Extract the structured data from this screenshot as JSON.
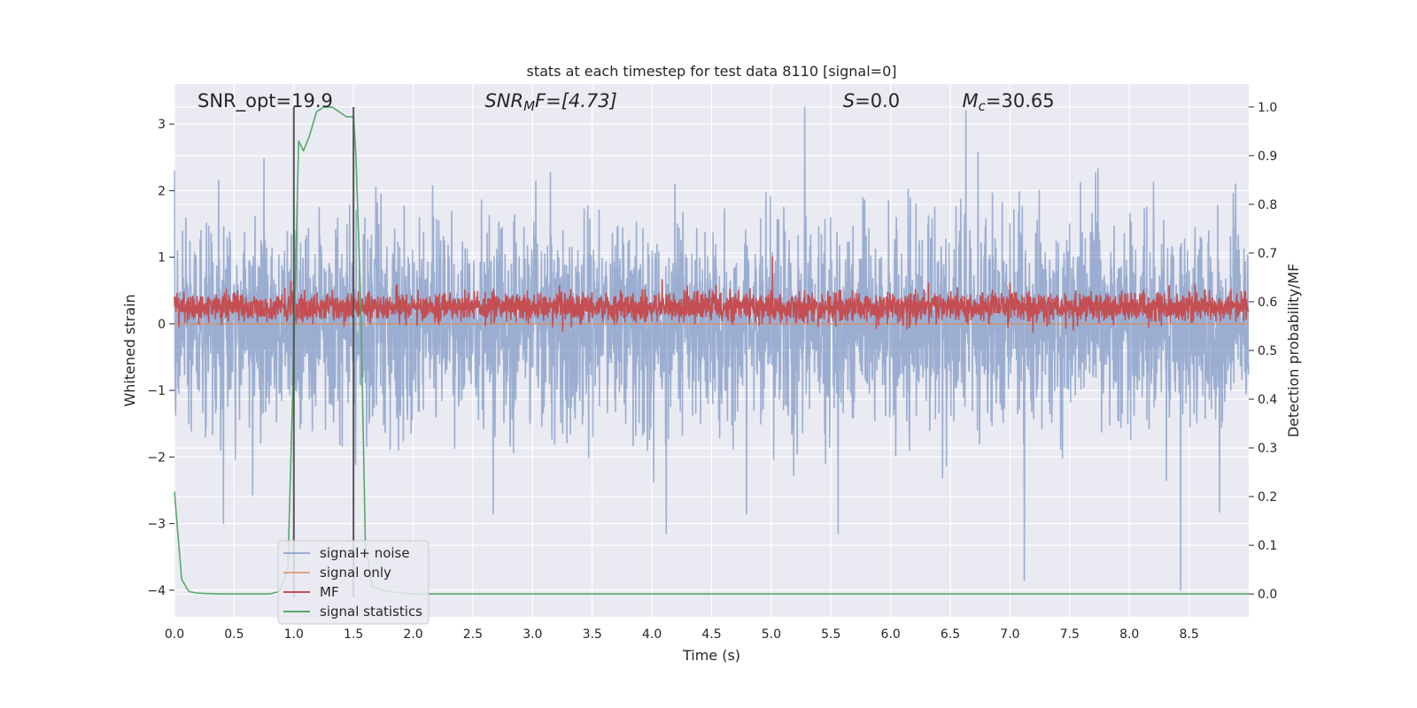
{
  "chart_data": {
    "type": "line",
    "title": "stats at each timestep for test data 8110 [signal=0]",
    "xlabel": "Time (s)",
    "ylabel": "Whitened strain",
    "ylabel_right": "Detection probability/MF",
    "xlim": [
      0.0,
      9.0
    ],
    "ylim": [
      -4.4,
      3.6
    ],
    "ylim_right": [
      -0.047,
      1.047
    ],
    "xticks": [
      0.0,
      0.5,
      1.0,
      1.5,
      2.0,
      2.5,
      3.0,
      3.5,
      4.0,
      4.5,
      5.0,
      5.5,
      6.0,
      6.5,
      7.0,
      7.5,
      8.0,
      8.5
    ],
    "xtick_labels": [
      "0.0",
      "0.5",
      "1.0",
      "1.5",
      "2.0",
      "2.5",
      "3.0",
      "3.5",
      "4.0",
      "4.5",
      "5.0",
      "5.5",
      "6.0",
      "6.5",
      "7.0",
      "7.5",
      "8.0",
      "8.5"
    ],
    "yticks": [
      -4,
      -3,
      -2,
      -1,
      0,
      1,
      2,
      3
    ],
    "ytick_labels": [
      "−4",
      "−3",
      "−2",
      "−1",
      "0",
      "1",
      "2",
      "3"
    ],
    "yticks_right": [
      0.0,
      0.1,
      0.2,
      0.3,
      0.4,
      0.5,
      0.6,
      0.7,
      0.8,
      0.9,
      1.0
    ],
    "ytick_labels_right": [
      "0.0",
      "0.1",
      "0.2",
      "0.3",
      "0.4",
      "0.5",
      "0.6",
      "0.7",
      "0.8",
      "0.9",
      "1.0"
    ],
    "grid": true,
    "legend_position": "lower-left",
    "annotations": {
      "snr_opt": "SNR_opt=19.9",
      "snr_mf_sym": "SNR",
      "snr_mf_sub": "M",
      "snr_mf_rest": "F=[4.73]",
      "s_sym": "S",
      "s_rest": "=0.0",
      "mc_sym": "M",
      "mc_sub": "c",
      "mc_rest": "=30.65"
    },
    "markers_x": [
      1.0,
      1.5
    ],
    "series": [
      {
        "name": "signal+ noise",
        "color": "#4c72b0",
        "opacity": 0.5,
        "axis": "left",
        "kind": "noise",
        "std": 0.75,
        "seed": 8110,
        "peaks": [
          [
            0.0,
            2.3
          ],
          [
            0.41,
            -3.0
          ],
          [
            5.28,
            3.25
          ],
          [
            5.56,
            -3.15
          ],
          [
            6.63,
            3.2
          ],
          [
            7.12,
            -3.85
          ],
          [
            8.43,
            -4.0
          ],
          [
            4.12,
            -3.15
          ],
          [
            2.67,
            -2.85
          ]
        ]
      },
      {
        "name": "signal only",
        "color": "#dd8452",
        "opacity": 0.7,
        "axis": "left",
        "kind": "constant",
        "value": 0.0
      },
      {
        "name": "MF",
        "color": "#c44e52",
        "opacity": 1.0,
        "axis": "left",
        "kind": "noise",
        "mean": 0.25,
        "std": 0.11,
        "seed": 42,
        "peaks": [
          [
            1.5,
            0.85
          ],
          [
            5.01,
            1.0
          ],
          [
            1.0,
            0.7
          ]
        ]
      },
      {
        "name": "signal statistics",
        "color": "#55a868",
        "opacity": 1.0,
        "axis": "right",
        "kind": "points",
        "x": [
          0.0,
          0.06,
          0.12,
          0.18,
          0.25,
          0.4,
          0.6,
          0.8,
          0.88,
          0.95,
          1.0,
          1.04,
          1.08,
          1.13,
          1.19,
          1.25,
          1.32,
          1.38,
          1.44,
          1.5,
          1.52,
          1.56,
          1.6,
          1.66,
          1.72,
          1.8,
          1.9,
          2.0,
          2.2,
          3.0,
          9.0
        ],
        "y": [
          0.21,
          0.03,
          0.005,
          0.002,
          0.001,
          0.0,
          0.0,
          0.0,
          0.005,
          0.05,
          0.5,
          0.93,
          0.91,
          0.94,
          0.99,
          1.0,
          1.0,
          0.99,
          0.98,
          0.98,
          0.9,
          0.6,
          0.1,
          0.015,
          0.01,
          0.005,
          0.002,
          0.0,
          0.0,
          0.0,
          0.0
        ]
      }
    ]
  }
}
